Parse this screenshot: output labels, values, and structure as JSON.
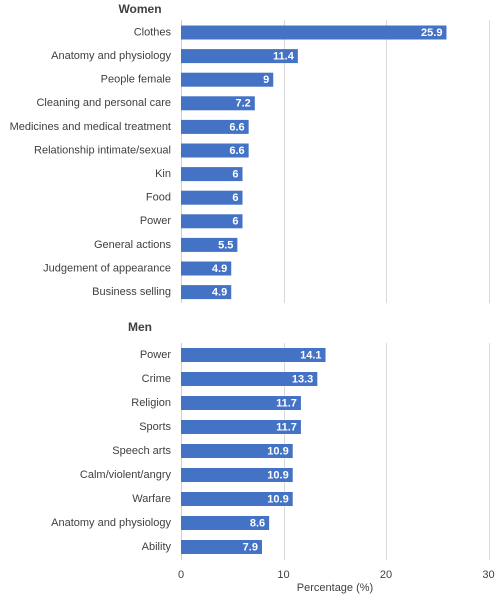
{
  "chart_data": {
    "type": "bar",
    "orientation": "horizontal",
    "panels": [
      {
        "title": "Women",
        "categories": [
          "Clothes",
          "Anatomy and physiology",
          "People female",
          "Cleaning and personal care",
          "Medicines and medical treatment",
          "Relationship intimate/sexual",
          "Kin",
          "Food",
          "Power",
          "General actions",
          "Judgement of appearance",
          "Business selling"
        ],
        "values": [
          25.9,
          11.4,
          9,
          7.2,
          6.6,
          6.6,
          6,
          6,
          6,
          5.5,
          4.9,
          4.9
        ],
        "value_labels": [
          "25.9",
          "11.4",
          "9",
          "7.2",
          "6.6",
          "6.6",
          "6",
          "6",
          "6",
          "5.5",
          "4.9",
          "4.9"
        ]
      },
      {
        "title": "Men",
        "categories": [
          "Power",
          "Crime",
          "Religion",
          "Sports",
          "Speech arts",
          "Calm/violent/angry",
          "Warfare",
          "Anatomy and physiology",
          "Ability"
        ],
        "values": [
          14.1,
          13.3,
          11.7,
          11.7,
          10.9,
          10.9,
          10.9,
          8.6,
          7.9
        ],
        "value_labels": [
          "14.1",
          "13.3",
          "11.7",
          "11.7",
          "10.9",
          "10.9",
          "10.9",
          "8.6",
          "7.9"
        ]
      }
    ],
    "xlabel": "Percentage (%)",
    "xlim": [
      0,
      30
    ],
    "xticks": [
      0,
      10,
      20,
      30
    ],
    "xtick_labels": [
      "0",
      "10",
      "20",
      "30"
    ],
    "bar_color": "#4472c4",
    "grid": true
  }
}
